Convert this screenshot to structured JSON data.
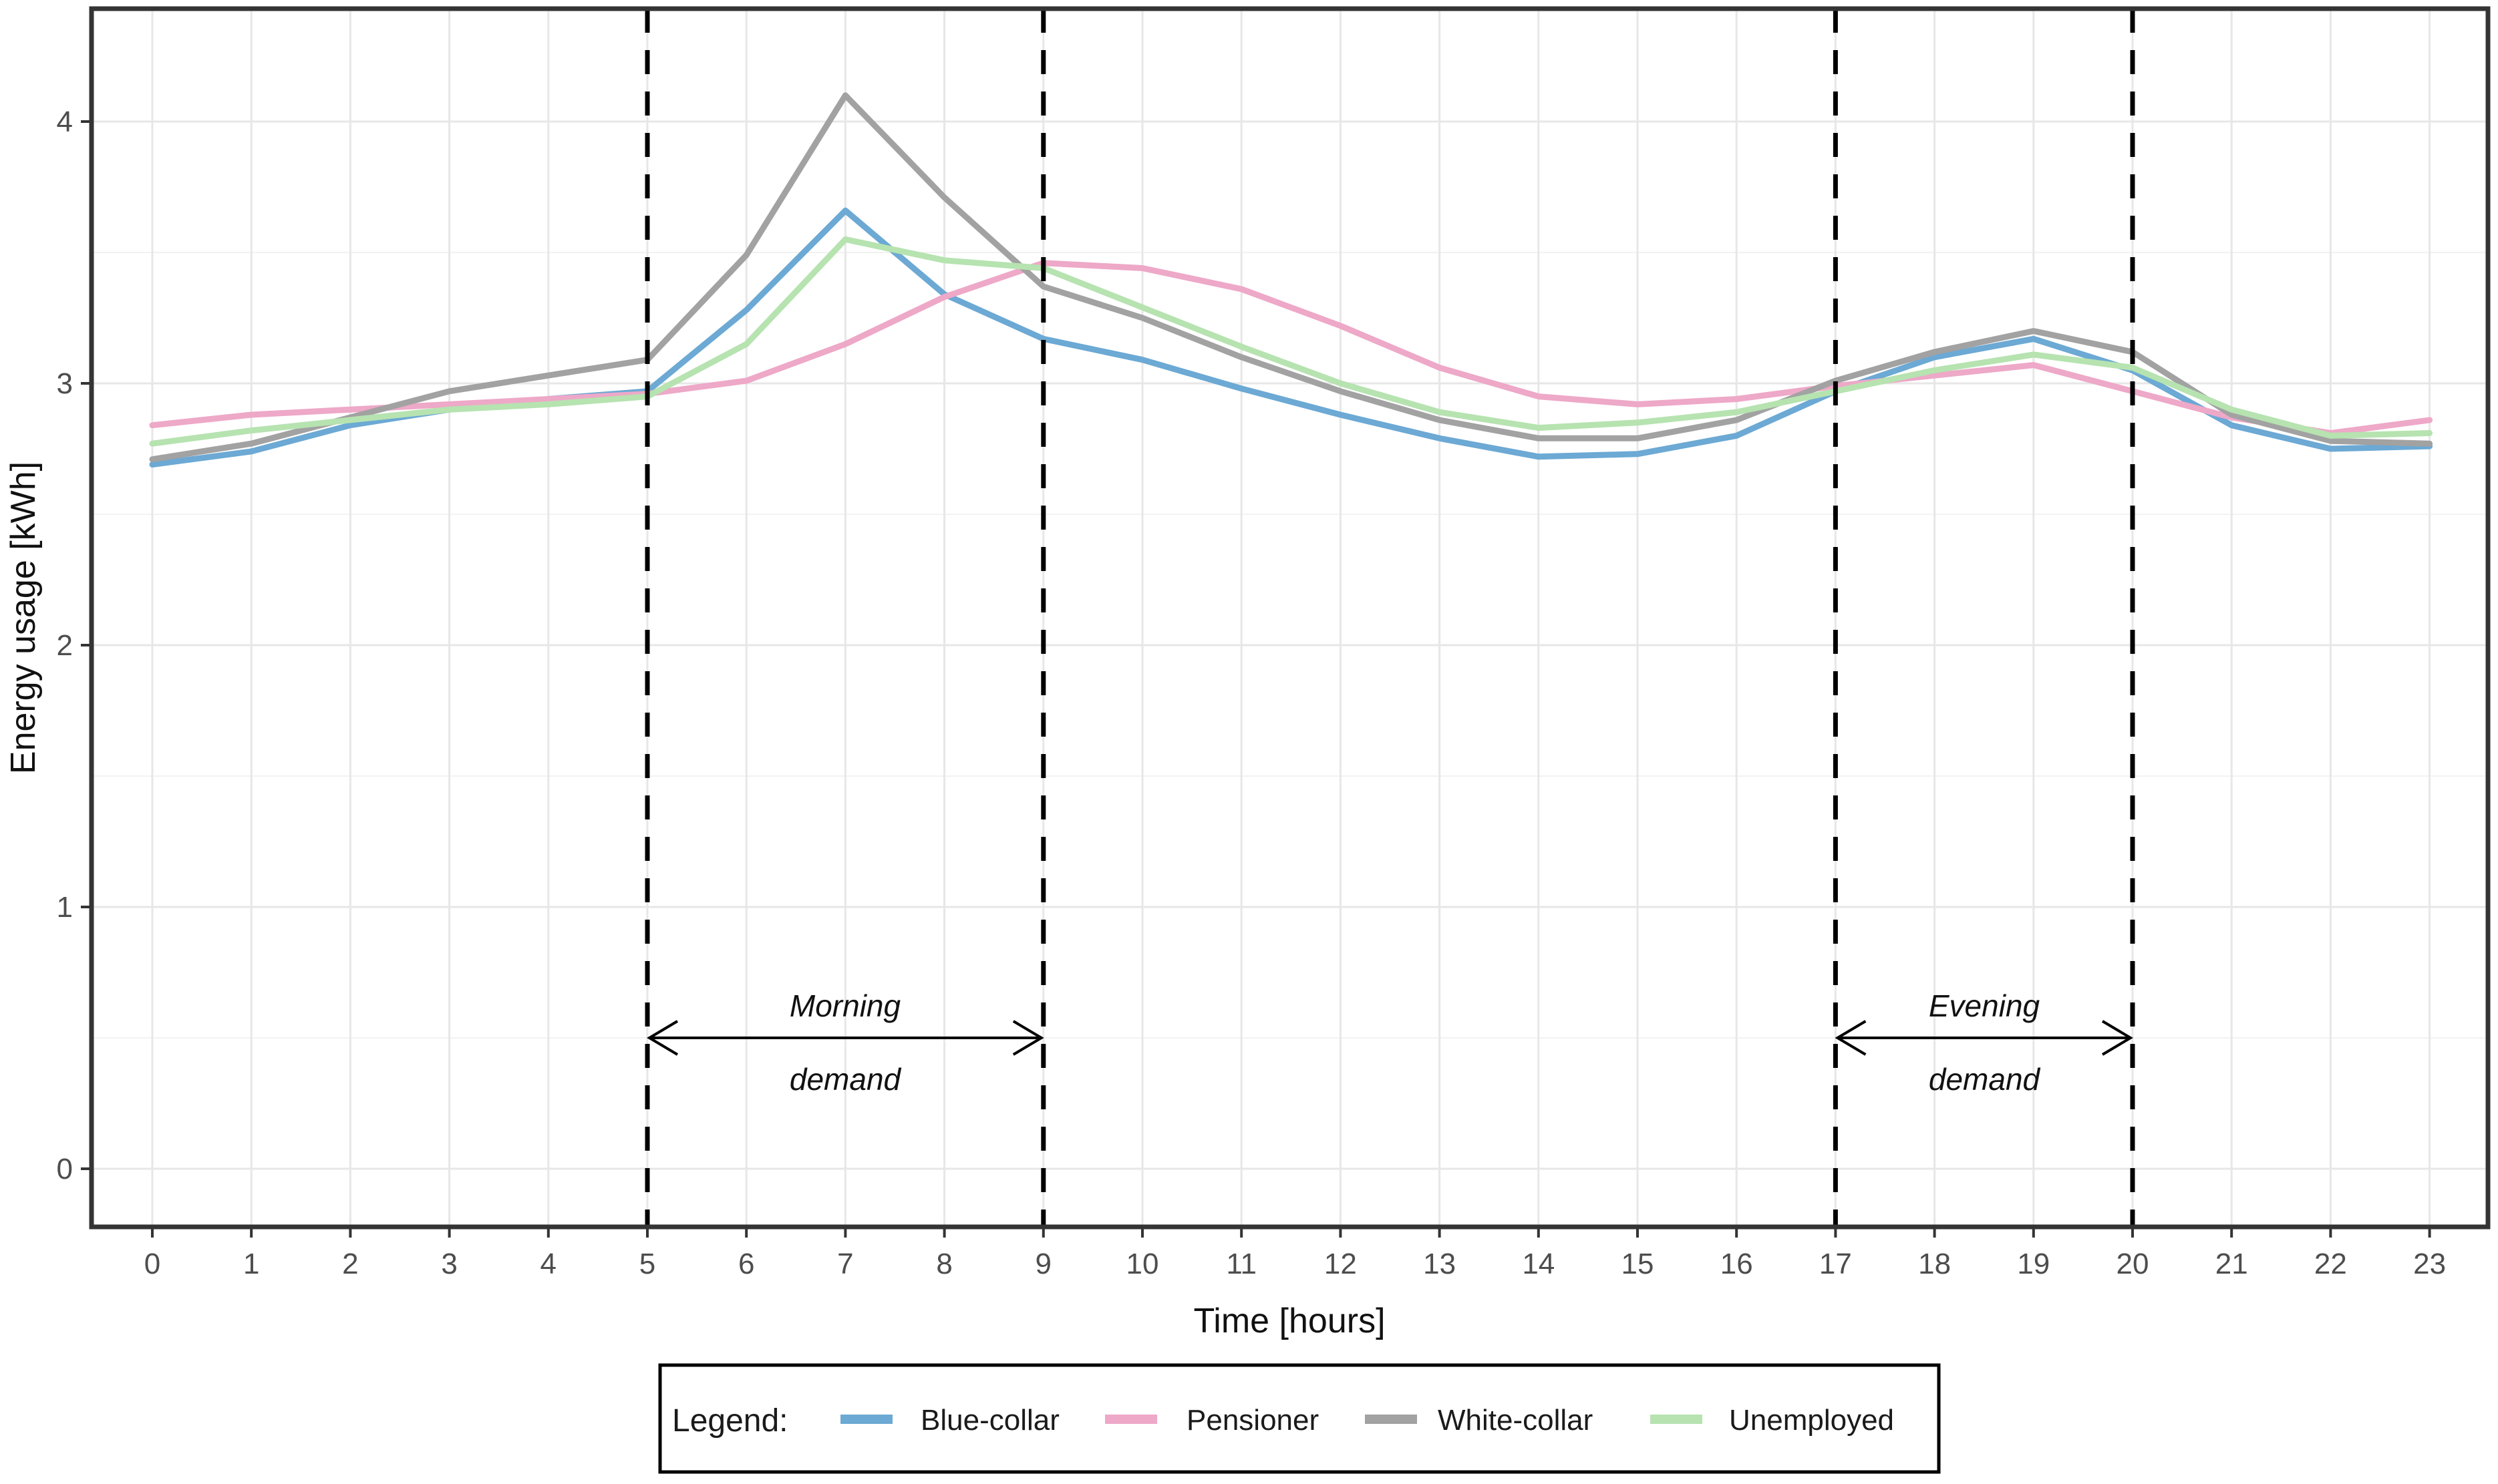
{
  "chart_data": {
    "type": "line",
    "title": "",
    "xlabel": "Time [hours]",
    "ylabel": "Energy usage [kWh]",
    "x": [
      0,
      1,
      2,
      3,
      4,
      5,
      6,
      7,
      8,
      9,
      10,
      11,
      12,
      13,
      14,
      15,
      16,
      17,
      18,
      19,
      20,
      21,
      22,
      23
    ],
    "x_tick_labels": [
      "0",
      "1",
      "2",
      "3",
      "4",
      "5",
      "6",
      "7",
      "8",
      "9",
      "10",
      "11",
      "12",
      "13",
      "14",
      "15",
      "16",
      "17",
      "18",
      "19",
      "20",
      "21",
      "22",
      "23"
    ],
    "y_tick_labels": [
      "0",
      "1",
      "2",
      "3",
      "4"
    ],
    "y_ticks": [
      0,
      1,
      2,
      3,
      4
    ],
    "y_minor_ticks": [
      0.5,
      1.5,
      2.5,
      3.5
    ],
    "xlim": [
      -0.6,
      23.6
    ],
    "ylim": [
      -0.22,
      4.44
    ],
    "grid": {
      "vertical_major_every_hour": true,
      "horizontal_major": true,
      "horizontal_minor_step": 0.5
    },
    "legend_position": "bottom",
    "legend": {
      "title": "Legend:",
      "entries": [
        "Blue-collar",
        "Pensioner",
        "White-collar",
        "Unemployed"
      ]
    },
    "series": [
      {
        "name": "Blue-collar",
        "color": "#6ca9d4",
        "values": [
          2.69,
          2.74,
          2.84,
          2.9,
          2.94,
          2.97,
          3.28,
          3.66,
          3.34,
          3.17,
          3.09,
          2.98,
          2.88,
          2.79,
          2.72,
          2.73,
          2.8,
          2.97,
          3.1,
          3.17,
          3.05,
          2.84,
          2.75,
          2.76
        ]
      },
      {
        "name": "Pensioner",
        "color": "#eea8c8",
        "values": [
          2.84,
          2.88,
          2.9,
          2.92,
          2.94,
          2.96,
          3.01,
          3.15,
          3.33,
          3.46,
          3.44,
          3.36,
          3.22,
          3.06,
          2.95,
          2.92,
          2.94,
          2.99,
          3.03,
          3.07,
          2.97,
          2.87,
          2.81,
          2.86
        ]
      },
      {
        "name": "White-collar",
        "color": "#a2a2a2",
        "values": [
          2.71,
          2.77,
          2.87,
          2.97,
          3.03,
          3.09,
          3.49,
          4.1,
          3.71,
          3.37,
          3.25,
          3.1,
          2.97,
          2.86,
          2.79,
          2.79,
          2.86,
          3.01,
          3.12,
          3.2,
          3.12,
          2.88,
          2.78,
          2.77
        ]
      },
      {
        "name": "Unemployed",
        "color": "#b6e3b0",
        "values": [
          2.77,
          2.82,
          2.86,
          2.9,
          2.92,
          2.95,
          3.15,
          3.55,
          3.47,
          3.44,
          3.29,
          3.14,
          3.0,
          2.89,
          2.83,
          2.85,
          2.89,
          2.97,
          3.05,
          3.11,
          3.06,
          2.9,
          2.8,
          2.81
        ]
      }
    ],
    "annotations": {
      "dashed_vlines_x": [
        5,
        9,
        17,
        20
      ],
      "vline_style": "black dashed, full panel height",
      "spans": [
        {
          "x_from": 5,
          "x_to": 9,
          "y": 0.5,
          "line1": "Morning",
          "line2": "demand"
        },
        {
          "x_from": 17,
          "x_to": 20,
          "y": 0.5,
          "line1": "Evening",
          "line2": "demand"
        }
      ]
    },
    "style": {
      "grid_major_color": "#e7e7e7",
      "grid_minor_color": "#f2f2f2",
      "panel_border_color": "#343434",
      "tick_label_color": "#4d4d4d",
      "series_line_width": 9,
      "background": "#ffffff"
    }
  }
}
